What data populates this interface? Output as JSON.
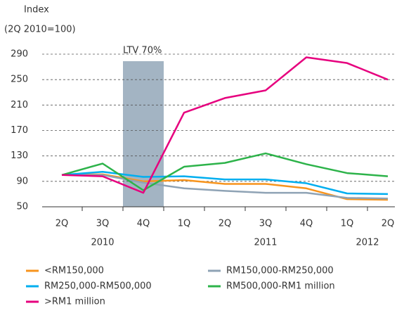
{
  "chart_data": {
    "type": "line",
    "y_axis_title": [
      "Index",
      "(2Q 2010=100)"
    ],
    "annotation": "LTV 70%",
    "categories": [
      "2Q",
      "3Q",
      "4Q",
      "1Q",
      "2Q",
      "3Q",
      "4Q",
      "1Q",
      "2Q"
    ],
    "year_labels": [
      "2010",
      "2011",
      "2012"
    ],
    "ylim": [
      50,
      290
    ],
    "yticks": [
      50,
      90,
      130,
      170,
      210,
      250,
      290
    ],
    "grid": true,
    "series": [
      {
        "name": "<RM150,000",
        "color": "#f7941d",
        "values": [
          100,
          101,
          90,
          92,
          86,
          86,
          79,
          62,
          61
        ]
      },
      {
        "name": "RM150,000-RM250,000",
        "color": "#8fa3b5",
        "values": [
          100,
          100,
          88,
          79,
          75,
          72,
          72,
          64,
          63
        ]
      },
      {
        "name": "RM250,000-RM500,000",
        "color": "#00aeef",
        "values": [
          100,
          105,
          97,
          98,
          93,
          93,
          87,
          71,
          70
        ]
      },
      {
        "name": "RM500,000-RM1 million",
        "color": "#2db34a",
        "values": [
          100,
          118,
          76,
          113,
          119,
          134,
          117,
          103,
          98
        ]
      },
      {
        "name": ">RM1 million",
        "color": "#e6007e",
        "values": [
          100,
          98,
          72,
          198,
          221,
          233,
          285,
          276,
          250
        ]
      }
    ]
  }
}
